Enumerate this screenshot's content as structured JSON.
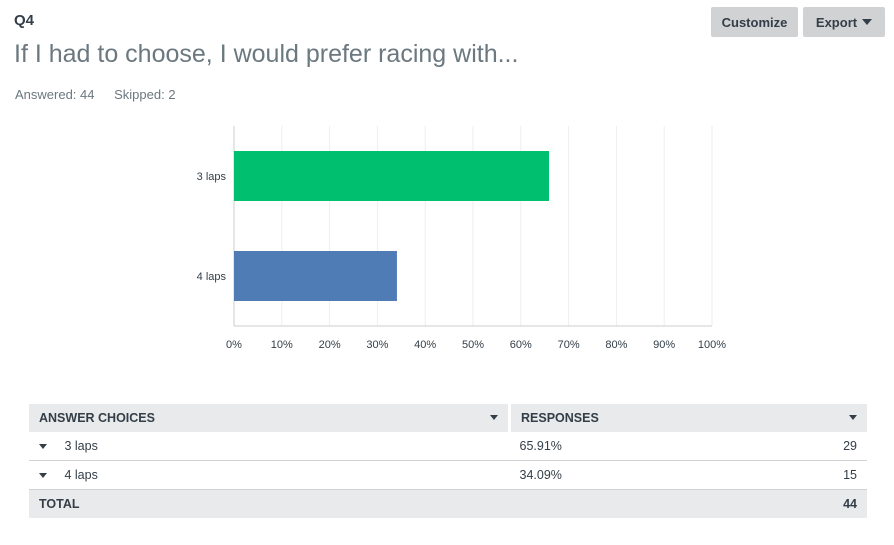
{
  "question": {
    "number": "Q4",
    "title": "If I had to choose, I would prefer racing with...",
    "answered": "Answered: 44",
    "skipped": "Skipped: 2"
  },
  "toolbar": {
    "customize_label": "Customize",
    "export_label": "Export"
  },
  "chart_data": {
    "type": "bar",
    "orientation": "horizontal",
    "categories": [
      "3 laps",
      "4 laps"
    ],
    "values": [
      65.91,
      34.09
    ],
    "colors": [
      "#00bf6f",
      "#507cb6"
    ],
    "xlim": [
      0,
      100
    ],
    "x_ticks": [
      "0%",
      "10%",
      "20%",
      "30%",
      "40%",
      "50%",
      "60%",
      "70%",
      "80%",
      "90%",
      "100%"
    ],
    "grid": true,
    "title": "",
    "xlabel": "",
    "ylabel": ""
  },
  "table": {
    "headers": {
      "choices": "ANSWER CHOICES",
      "responses": "RESPONSES"
    },
    "rows": [
      {
        "choice": "3 laps",
        "percent": "65.91%",
        "count": "29"
      },
      {
        "choice": "4 laps",
        "percent": "34.09%",
        "count": "15"
      }
    ],
    "total_label": "TOTAL",
    "total_count": "44"
  }
}
